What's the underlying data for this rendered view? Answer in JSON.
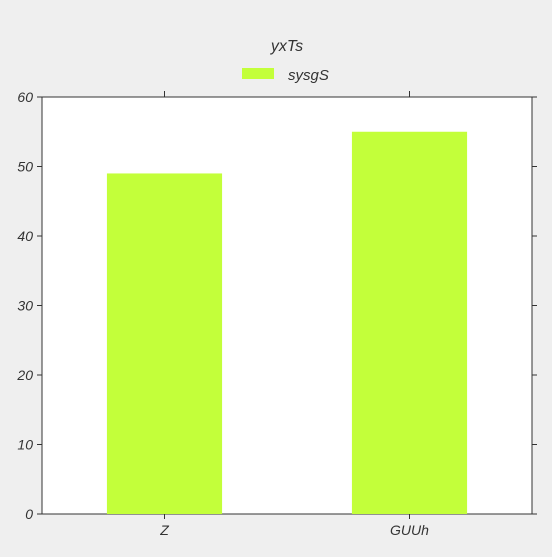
{
  "chart_data": {
    "type": "bar",
    "title": "yxTs",
    "categories": [
      "Z",
      "GUUh"
    ],
    "series": [
      {
        "name": "sysgS",
        "values": [
          49,
          55
        ],
        "color": "#c3ff3a"
      }
    ],
    "xlabel": "",
    "ylabel": "",
    "ylim": [
      0,
      60
    ],
    "yticks": [
      "0",
      "10",
      "20",
      "30",
      "40",
      "50",
      "60"
    ],
    "grid": false,
    "legend_position": "top-center"
  }
}
